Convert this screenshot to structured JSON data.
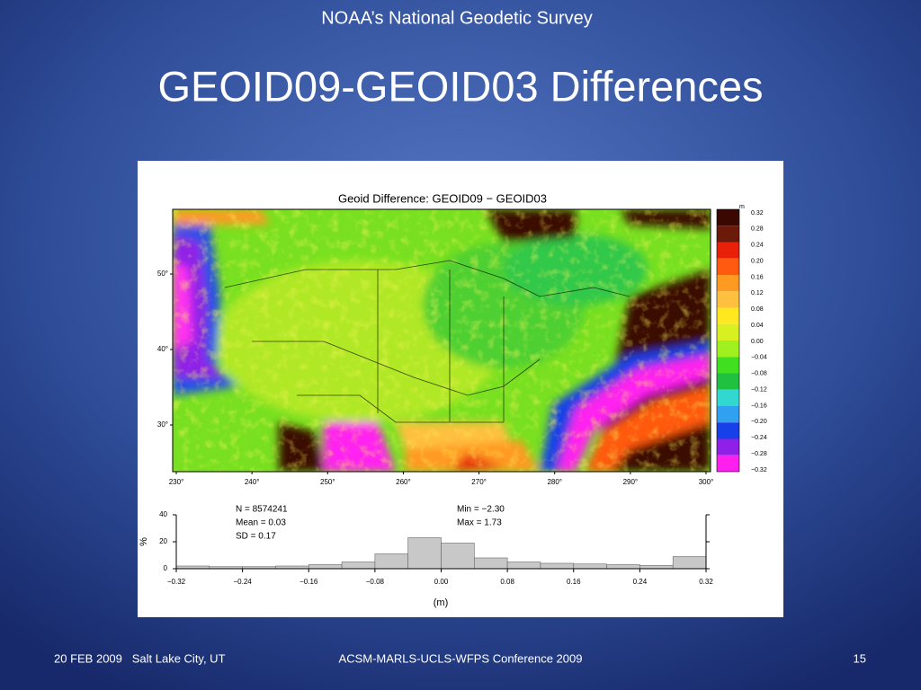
{
  "header": {
    "organization": "NOAA’s National Geodetic Survey",
    "title": "GEOID09-GEOID03 Differences"
  },
  "map": {
    "title": "Geoid Difference: GEOID09 − GEOID03",
    "lat_labels": [
      "50°",
      "40°",
      "30°"
    ],
    "lon_labels": [
      "230°",
      "240°",
      "250°",
      "260°",
      "270°",
      "280°",
      "290°",
      "300°"
    ],
    "colorbar": {
      "unit": "m",
      "labels": [
        "0.32",
        "0.28",
        "0.24",
        "0.20",
        "0.16",
        "0.12",
        "0.08",
        "0.04",
        "0.00",
        "−0.04",
        "−0.08",
        "−0.12",
        "−0.16",
        "−0.20",
        "−0.24",
        "−0.28",
        "−0.32"
      ],
      "colors": [
        "#3a0800",
        "#6b1a0a",
        "#e8200a",
        "#ff5a10",
        "#ff9a20",
        "#ffc040",
        "#ffe820",
        "#d8f020",
        "#a0f020",
        "#40e020",
        "#20c040",
        "#30d8d0",
        "#30a0f0",
        "#1840e8",
        "#9020e8",
        "#ff20f0"
      ]
    }
  },
  "chart_data": {
    "type": "histogram",
    "bins": [
      -0.32,
      -0.28,
      -0.24,
      -0.2,
      -0.16,
      -0.12,
      -0.08,
      -0.04,
      0,
      0.04,
      0.08,
      0.12,
      0.16,
      0.2,
      0.24,
      0.28,
      0.32
    ],
    "values": [
      2,
      1.5,
      1.5,
      2,
      3,
      5,
      11,
      23,
      19,
      8,
      5,
      4,
      3.5,
      3,
      2.5,
      9
    ],
    "color": "#c8c8c8",
    "xlim": [
      -0.32,
      0.32
    ],
    "ylim": [
      0,
      40
    ],
    "xticks": [
      {
        "value": -0.32,
        "label": "−0.32"
      },
      {
        "value": -0.24,
        "label": "−0.24"
      },
      {
        "value": -0.16,
        "label": "−0.16"
      },
      {
        "value": -0.08,
        "label": "−0.08"
      },
      {
        "value": 0,
        "label": "0.00"
      },
      0.08,
      0.16,
      0.24,
      0.32
    ],
    "yticks": [
      0,
      20,
      40
    ],
    "xlabel": "(m)",
    "ylabel": "%",
    "annotations": [
      "N = 8574241",
      "Mean = 0.03",
      "SD = 0.17",
      "Min = −2.30",
      "Max = 1.73"
    ]
  },
  "footer": {
    "date_location": "20 FEB 2009   Salt Lake City, UT",
    "conference": "ACSM-MARLS-UCLS-WFPS Conference 2009",
    "page": "15"
  }
}
